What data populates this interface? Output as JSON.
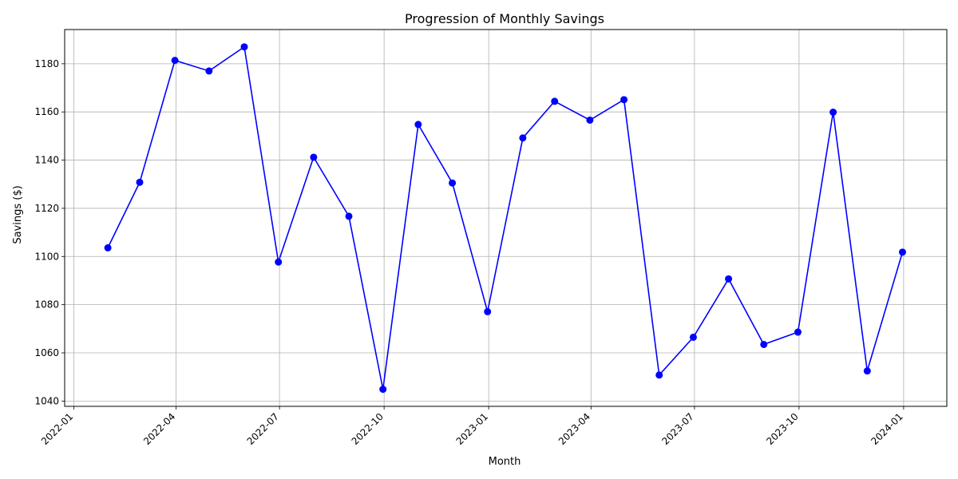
{
  "chart_data": {
    "type": "line",
    "title": "Progression of Monthly Savings",
    "xlabel": "Month",
    "ylabel": "Savings ($)",
    "x": [
      "2022-01-31",
      "2022-02-28",
      "2022-03-31",
      "2022-04-30",
      "2022-05-31",
      "2022-06-30",
      "2022-07-31",
      "2022-08-31",
      "2022-09-30",
      "2022-10-31",
      "2022-11-30",
      "2022-12-31",
      "2023-01-31",
      "2023-02-28",
      "2023-03-31",
      "2023-04-30",
      "2023-05-31",
      "2023-06-30",
      "2023-07-31",
      "2023-08-31",
      "2023-09-30",
      "2023-10-31",
      "2023-11-30",
      "2023-12-31"
    ],
    "series": [
      {
        "values": [
          1103.6,
          1130.8,
          1181.4,
          1177.0,
          1187.0,
          1097.7,
          1141.2,
          1116.7,
          1044.9,
          1154.8,
          1130.5,
          1077.1,
          1149.2,
          1164.4,
          1156.6,
          1165.1,
          1050.8,
          1066.5,
          1090.7,
          1063.5,
          1068.6,
          1159.9,
          1052.5,
          1101.8
        ],
        "color": "#0000ff",
        "marker": "circle"
      }
    ],
    "xlim": [
      "2021-12-24",
      "2024-02-08"
    ],
    "ylim": [
      1037.8,
      1194.2
    ],
    "x_ticks": [
      "2022-01",
      "2022-04",
      "2022-07",
      "2022-10",
      "2023-01",
      "2023-04",
      "2023-07",
      "2023-10",
      "2024-01"
    ],
    "y_ticks": [
      1040,
      1060,
      1080,
      1100,
      1120,
      1140,
      1160,
      1180
    ],
    "grid": true,
    "x_tick_rotation": 45
  }
}
